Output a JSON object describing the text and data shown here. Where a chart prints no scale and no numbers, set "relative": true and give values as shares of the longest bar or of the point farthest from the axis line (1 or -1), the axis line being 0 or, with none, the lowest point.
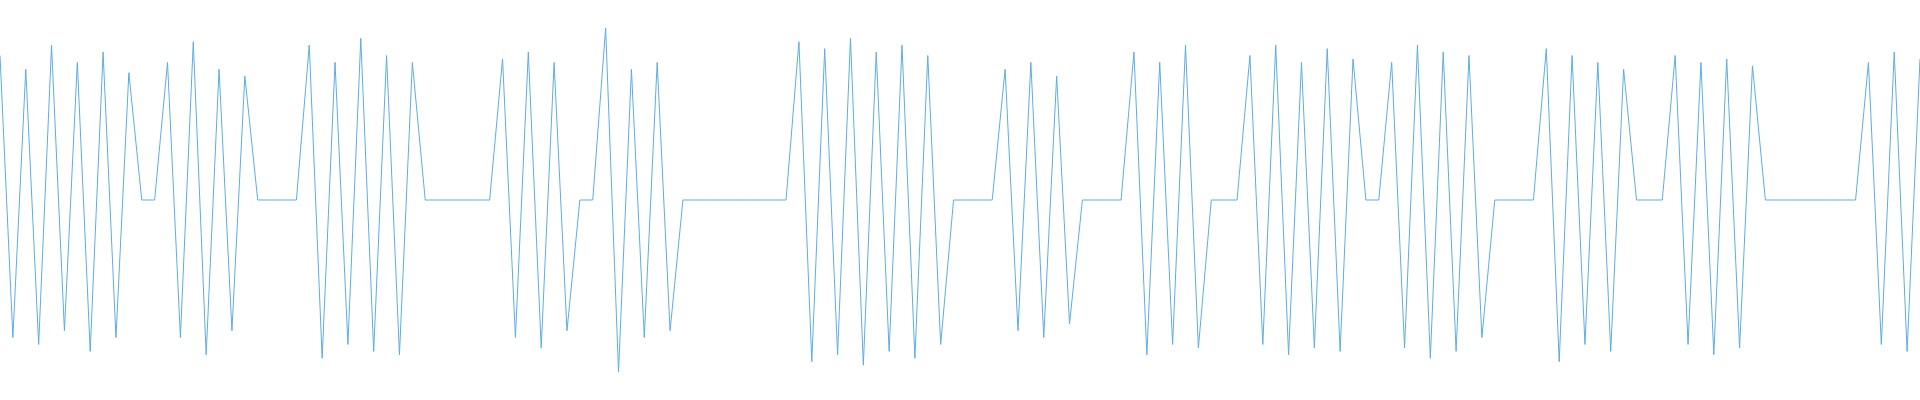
{
  "chart_data": {
    "type": "line",
    "relative": true,
    "marker": "none",
    "legend": false,
    "categories": [
      null,
      null,
      null,
      null,
      null,
      null,
      null,
      null,
      null,
      null,
      null,
      null,
      null,
      null,
      null,
      null,
      null,
      null,
      null,
      null,
      null,
      null,
      null,
      null,
      null,
      null,
      null,
      null,
      null,
      null,
      null,
      null,
      null,
      null,
      null,
      null,
      null,
      null,
      null,
      null,
      null,
      null,
      null,
      null,
      null,
      null,
      null,
      null,
      null,
      null,
      null,
      null,
      null,
      null,
      null,
      null,
      null,
      null,
      null,
      null,
      null,
      null,
      null,
      null,
      null,
      null,
      null,
      null,
      null,
      null,
      null,
      null,
      null,
      null,
      null,
      null,
      null,
      null,
      null,
      null,
      null,
      null,
      null,
      null,
      null,
      null,
      null,
      null,
      null,
      null,
      null,
      null,
      null,
      null,
      null,
      null,
      null,
      null,
      null,
      null,
      null,
      null,
      null,
      null,
      null,
      null,
      null,
      null,
      null,
      null,
      null,
      null,
      null,
      null,
      null,
      null,
      null,
      null,
      null,
      null,
      null,
      null,
      null,
      null,
      null,
      null,
      null,
      null,
      null,
      null,
      null,
      null,
      null,
      null,
      null,
      null,
      null,
      null,
      null,
      null,
      null,
      null,
      null,
      null,
      null,
      null,
      null,
      null,
      null,
      null
    ],
    "series": [
      {
        "color": "#5dade2",
        "values": [
          0.92,
          0.1,
          0.88,
          0.08,
          0.95,
          0.12,
          0.9,
          0.06,
          0.93,
          0.1,
          0.87,
          0.5,
          0.5,
          0.9,
          0.1,
          0.96,
          0.05,
          0.88,
          0.12,
          0.86,
          0.5,
          0.5,
          0.5,
          0.5,
          0.95,
          0.04,
          0.9,
          0.08,
          0.97,
          0.06,
          0.92,
          0.05,
          0.9,
          0.5,
          0.5,
          0.5,
          0.5,
          0.5,
          0.5,
          0.91,
          0.1,
          0.93,
          0.07,
          0.9,
          0.12,
          0.5,
          0.5,
          1,
          0,
          0.88,
          0.1,
          0.9,
          0.12,
          0.5,
          0.5,
          0.5,
          0.5,
          0.5,
          0.5,
          0.5,
          0.5,
          0.5,
          0.96,
          0.03,
          0.94,
          0.05,
          0.97,
          0.02,
          0.93,
          0.06,
          0.95,
          0.04,
          0.92,
          0.08,
          0.5,
          0.5,
          0.5,
          0.5,
          0.88,
          0.12,
          0.9,
          0.1,
          0.86,
          0.14,
          0.5,
          0.5,
          0.5,
          0.5,
          0.93,
          0.05,
          0.9,
          0.08,
          0.95,
          0.07,
          0.5,
          0.5,
          0.5,
          0.92,
          0.08,
          0.95,
          0.05,
          0.9,
          0.07,
          0.94,
          0.06,
          0.91,
          0.5,
          0.5,
          0.9,
          0.07,
          0.95,
          0.04,
          0.93,
          0.06,
          0.92,
          0.1,
          0.5,
          0.5,
          0.5,
          0.5,
          0.94,
          0.03,
          0.92,
          0.08,
          0.9,
          0.06,
          0.88,
          0.5,
          0.5,
          0.5,
          0.92,
          0.08,
          0.9,
          0.05,
          0.91,
          0.07,
          0.89,
          0.5,
          0.5,
          0.5,
          0.5,
          0.5,
          0.5,
          0.5,
          0.5,
          0.9,
          0.08,
          0.93,
          0.06,
          0.91
        ]
      }
    ]
  }
}
